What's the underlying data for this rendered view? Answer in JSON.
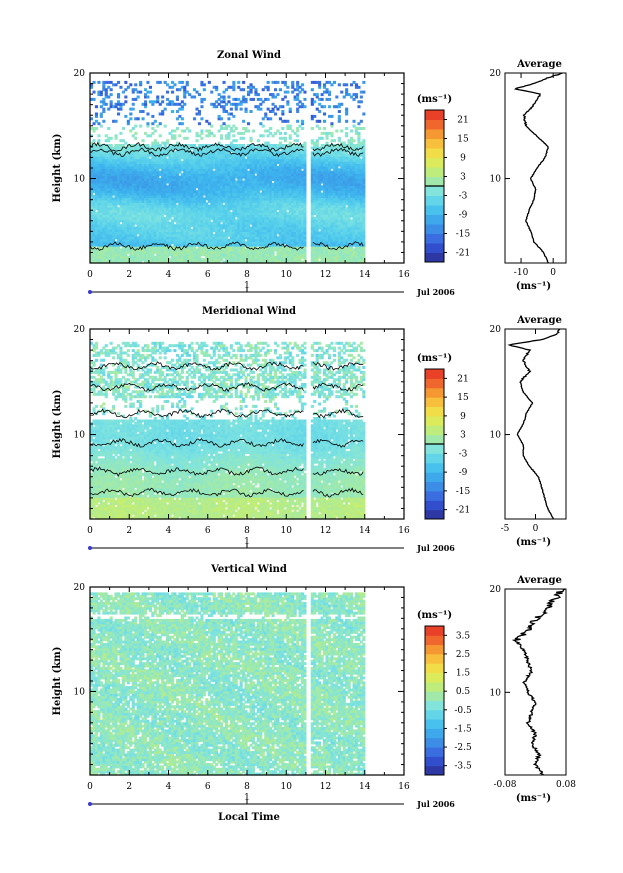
{
  "chart_data": [
    {
      "type": "heatmap",
      "title": "Zonal Wind",
      "ylabel": "Height (km)",
      "xlim": [
        0,
        16
      ],
      "ylim": [
        2,
        20
      ],
      "x_ticks": [
        "0",
        "2",
        "4",
        "6",
        "8",
        "10",
        "12",
        "14",
        "16"
      ],
      "y_ticks": [
        "10",
        "20"
      ],
      "data_time_range": [
        0,
        14
      ],
      "gap_at_hour": 11.1,
      "date_axis": {
        "day_label": "1",
        "date_label": "Jul 2006"
      },
      "colorbar": {
        "unit": "(ms⁻¹)",
        "range": [
          -24,
          24
        ],
        "tick_labels": [
          "21",
          "15",
          "9",
          "3",
          "-3",
          "-9",
          "-15",
          "-21"
        ],
        "tick_values": [
          21,
          15,
          9,
          3,
          -3,
          -9,
          -15,
          -21
        ],
        "zero_line": 0
      },
      "profile": {
        "title": "Average",
        "xlabel": "(ms⁻¹)",
        "x_ticks": [
          "-10",
          "0"
        ],
        "y_ticks": [
          "10",
          "20"
        ],
        "xlim": [
          -15,
          4
        ],
        "height_km": [
          2.0,
          3.0,
          4.0,
          5.0,
          6.0,
          7.0,
          8.0,
          9.0,
          10.0,
          11.0,
          12.0,
          13.0,
          14.0,
          15.0,
          16.0,
          17.0,
          18.0,
          18.5,
          19.0,
          19.5,
          20.0
        ],
        "value_ms": [
          -1.5,
          -3.0,
          -6.0,
          -7.0,
          -8.5,
          -7.5,
          -6.0,
          -5.5,
          -7.0,
          -5.0,
          -2.5,
          -1.5,
          -5.0,
          -8.5,
          -9.0,
          -6.0,
          -4.0,
          -12.0,
          -6.0,
          -2.0,
          3.0
        ]
      }
    },
    {
      "type": "heatmap",
      "title": "Meridional Wind",
      "ylabel": "Height (km)",
      "xlim": [
        0,
        16
      ],
      "ylim": [
        2,
        20
      ],
      "x_ticks": [
        "0",
        "2",
        "4",
        "6",
        "8",
        "10",
        "12",
        "14",
        "16"
      ],
      "y_ticks": [
        "10",
        "20"
      ],
      "data_time_range": [
        0,
        14
      ],
      "gap_at_hour": 11.1,
      "date_axis": {
        "day_label": "1",
        "date_label": "Jul 2006"
      },
      "colorbar": {
        "unit": "(ms⁻¹)",
        "range": [
          -24,
          24
        ],
        "tick_labels": [
          "21",
          "15",
          "9",
          "3",
          "-3",
          "-9",
          "-15",
          "-21"
        ],
        "tick_values": [
          21,
          15,
          9,
          3,
          -3,
          -9,
          -15,
          -21
        ],
        "zero_line": 0
      },
      "profile": {
        "title": "Average",
        "xlabel": "(ms⁻¹)",
        "x_ticks": [
          "-5",
          "0"
        ],
        "y_ticks": [
          "10",
          "20"
        ],
        "xlim": [
          -5,
          5
        ],
        "height_km": [
          2.0,
          3.0,
          4.0,
          5.0,
          6.0,
          7.0,
          8.0,
          9.0,
          10.0,
          11.0,
          12.0,
          13.0,
          14.0,
          15.0,
          16.0,
          17.0,
          18.0,
          18.5,
          19.0,
          19.5,
          20.0
        ],
        "value_ms": [
          3.0,
          2.0,
          1.5,
          1.0,
          0.5,
          -1.0,
          -2.0,
          -2.0,
          -3.0,
          -2.0,
          -1.5,
          -0.5,
          -2.0,
          -2.5,
          -1.0,
          -2.0,
          -1.0,
          -4.5,
          1.0,
          3.5,
          4.0
        ]
      }
    },
    {
      "type": "heatmap",
      "title": "Vertical Wind",
      "ylabel": "Height (km)",
      "xlabel": "Local Time",
      "xlim": [
        0,
        16
      ],
      "ylim": [
        2,
        20
      ],
      "x_ticks": [
        "0",
        "2",
        "4",
        "6",
        "8",
        "10",
        "12",
        "14",
        "16"
      ],
      "y_ticks": [
        "10",
        "20"
      ],
      "data_time_range": [
        0,
        14
      ],
      "gap_at_hour": 11.1,
      "date_axis": {
        "day_label": "1",
        "date_label": "Jul 2006"
      },
      "colorbar": {
        "unit": "(ms⁻¹)",
        "range": [
          -4,
          4
        ],
        "tick_labels": [
          "3.5",
          "2.5",
          "1.5",
          "0.5",
          "-0.5",
          "-1.5",
          "-2.5",
          "-3.5"
        ],
        "tick_values": [
          3.5,
          2.5,
          1.5,
          0.5,
          -0.5,
          -1.5,
          -2.5,
          -3.5
        ],
        "zero_line": null
      },
      "profile": {
        "title": "Average",
        "xlabel": "(ms⁻¹)",
        "x_ticks": [
          "-0.08",
          "0.08"
        ],
        "y_ticks": [
          "10",
          "20"
        ],
        "xlim": [
          -0.08,
          0.08
        ],
        "height_km": [
          2.0,
          3.0,
          4.0,
          5.0,
          6.0,
          7.0,
          8.0,
          9.0,
          10.0,
          11.0,
          12.0,
          13.0,
          14.0,
          15.0,
          16.0,
          17.0,
          18.0,
          19.0,
          20.0
        ],
        "value_ms": [
          0.02,
          0.0,
          0.01,
          -0.01,
          0.0,
          -0.02,
          -0.01,
          0.0,
          -0.02,
          -0.03,
          -0.01,
          -0.02,
          -0.03,
          -0.05,
          -0.02,
          0.0,
          0.03,
          0.05,
          0.07
        ]
      }
    }
  ],
  "colors": {
    "scale": [
      "#2e2f8c",
      "#2f46c8",
      "#3a6de0",
      "#3c93e6",
      "#3db4ee",
      "#57d0ec",
      "#7ee3e0",
      "#a4eaa6",
      "#c8ee6c",
      "#ede94d",
      "#f8c63e",
      "#f69632",
      "#ee5a2b",
      "#e43024"
    ],
    "contour": "#000000",
    "axis": "#000000",
    "date_axis": "#3a3ad0"
  }
}
